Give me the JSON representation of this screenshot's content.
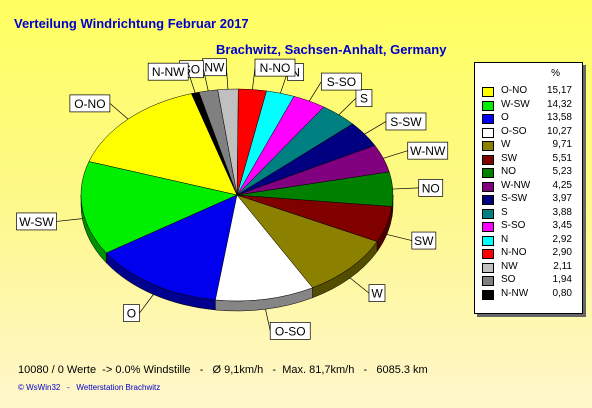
{
  "chart_data": {
    "type": "pie",
    "title": "Verteilung Windrichtung   Februar 2017",
    "subtitle": "Brachwitz, Sachsen-Anhalt, Germany",
    "legend_unit": "%",
    "legend_position": "right",
    "slices": [
      {
        "label": "O-NO",
        "value": "15,17",
        "color": "#ffff00"
      },
      {
        "label": "W-SW",
        "value": "14,32",
        "color": "#00ee00"
      },
      {
        "label": "O",
        "value": "13,58",
        "color": "#0000ee"
      },
      {
        "label": "O-SO",
        "value": "10,27",
        "color": "#ffffff"
      },
      {
        "label": "W",
        "value": "9,71",
        "color": "#8b8000"
      },
      {
        "label": "SW",
        "value": "5,51",
        "color": "#800000"
      },
      {
        "label": "NO",
        "value": "5,23",
        "color": "#008000"
      },
      {
        "label": "W-NW",
        "value": "4,25",
        "color": "#800080"
      },
      {
        "label": "S-SW",
        "value": "3,97",
        "color": "#000080"
      },
      {
        "label": "S",
        "value": "3,88",
        "color": "#008080"
      },
      {
        "label": "S-SO",
        "value": "3,45",
        "color": "#ff00ff"
      },
      {
        "label": "N",
        "value": "2,92",
        "color": "#00ffff"
      },
      {
        "label": "N-NO",
        "value": "2,90",
        "color": "#ff0000"
      },
      {
        "label": "NW",
        "value": "2,11",
        "color": "#c0c0c0"
      },
      {
        "label": "SO",
        "value": "1,94",
        "color": "#808080"
      },
      {
        "label": "N-NW",
        "value": "0,80",
        "color": "#000000"
      }
    ]
  },
  "footer": "10080 / 0 Werte  -> 0.0% Windstille   -   Ø 9,1km/h   -  Max. 81,7km/h   -   6085.3 km",
  "credit": "© WsWin32   -   Wetterstation Brachwitz"
}
